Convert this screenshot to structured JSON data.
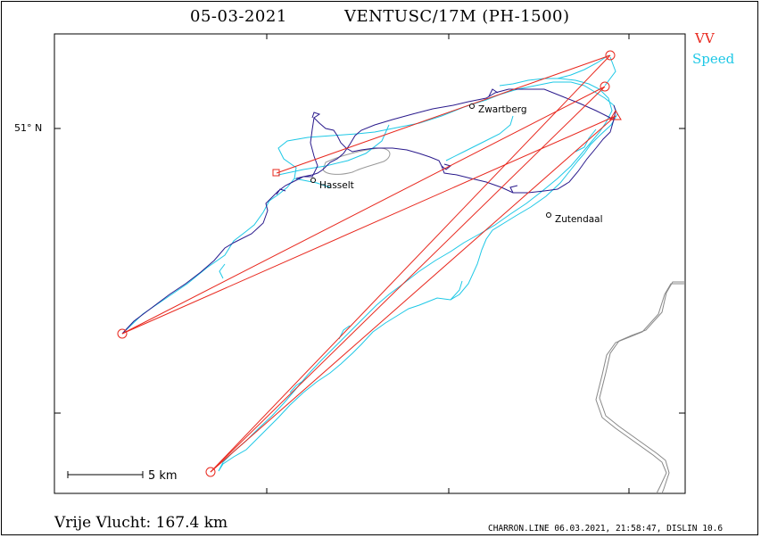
{
  "header": {
    "date": "05-03-2021",
    "glider": "VENTUSC/17M (PH-1500)"
  },
  "legend": {
    "vv_label": "VV",
    "speed_label": "Speed",
    "vv_color": "#e8281e",
    "speed_color": "#1ec8e6"
  },
  "map": {
    "latitude_label": "51° N",
    "cities": [
      {
        "name": "Zwartberg"
      },
      {
        "name": "Hasselt"
      },
      {
        "name": "Zutendaal"
      }
    ],
    "scale_label": "5 km",
    "track_color": "#2a1a8c",
    "border_color": "#888888"
  },
  "footer": {
    "distance": "Vrije Vlucht:  167.4 km",
    "credit": "CHARRON.LINE 06.03.2021, 21:58:47, DISLIN 10.6"
  }
}
